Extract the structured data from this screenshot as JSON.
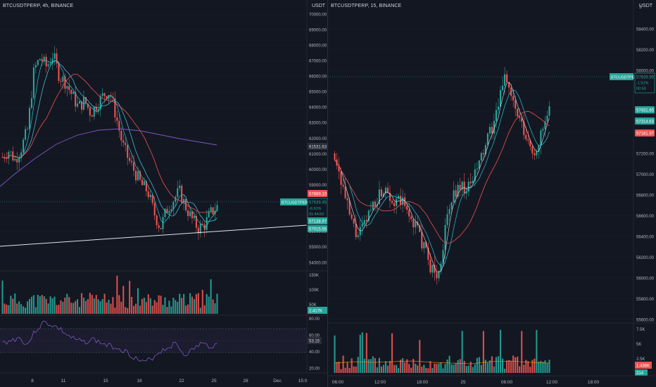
{
  "left": {
    "symbol": "BTCUSDTPERP, 4h, BINANCE",
    "currency": "USDT",
    "price_axis": [
      "70000.00",
      "69000.00",
      "68000.00",
      "67000.00",
      "66000.00",
      "65000.00",
      "64000.00",
      "63000.00",
      "62000.00",
      "61000.00",
      "60000.00",
      "59000.00",
      "58000.00",
      "57000.00",
      "56000.00",
      "55000.00",
      "54000.00"
    ],
    "x_labels": [
      "8",
      "11",
      "15",
      "18",
      "22",
      "25",
      "28",
      "Dec",
      "15:0"
    ],
    "tags": {
      "ma_top": "61531.63",
      "red": "57889.10",
      "last_label": "BTCUSDTPERP",
      "last_price": "57639.95",
      "last_change": "-6.91%",
      "last_countdown": "01:44:50",
      "ma_low": "57138.97",
      "ma_low2": "57015.55"
    },
    "volume_axis": [
      "150K",
      "100K",
      "50K"
    ],
    "volume_tag": "2.417K",
    "rsi_axis": [
      "80.00",
      "60.00",
      "40.00",
      "20.00"
    ],
    "rsi_tag": "53.15"
  },
  "right": {
    "symbol": "BTCUSDTPERP, 15, BINANCE",
    "currency": "USDT",
    "price_axis": [
      "58400.00",
      "58200.00",
      "58000.00",
      "57800.00",
      "57600.00",
      "57400.00",
      "57200.00",
      "57000.00",
      "56800.00",
      "56600.00",
      "56400.00",
      "56200.00",
      "56000.00",
      "55800.00",
      "55600.00"
    ],
    "top_axis_label": "5",
    "x_labels": [
      "06:00",
      "12:00",
      "18:00",
      "25",
      "06:00",
      "12:00",
      "18:00"
    ],
    "tags": {
      "last_label": "BTCUSDTPERP",
      "last_price": "57639.95",
      "last_change": "-1.51%",
      "last_countdown": "00:50",
      "ma1": "57431.65",
      "ma2": "57314.63",
      "red": "57181.97"
    },
    "volume_axis": [
      "7.5K",
      "5K",
      "2.5K"
    ],
    "volume_tags": [
      "1.436K",
      "214"
    ]
  },
  "colors": {
    "bg": "#131722",
    "up": "#26a69a",
    "down": "#ef5350",
    "ma_fast": "#26c6da",
    "ma_slow": "#ef5350",
    "ma_long": "#7e57c2",
    "trendline": "#e0e3eb",
    "rsi": "#7e57c2"
  }
}
